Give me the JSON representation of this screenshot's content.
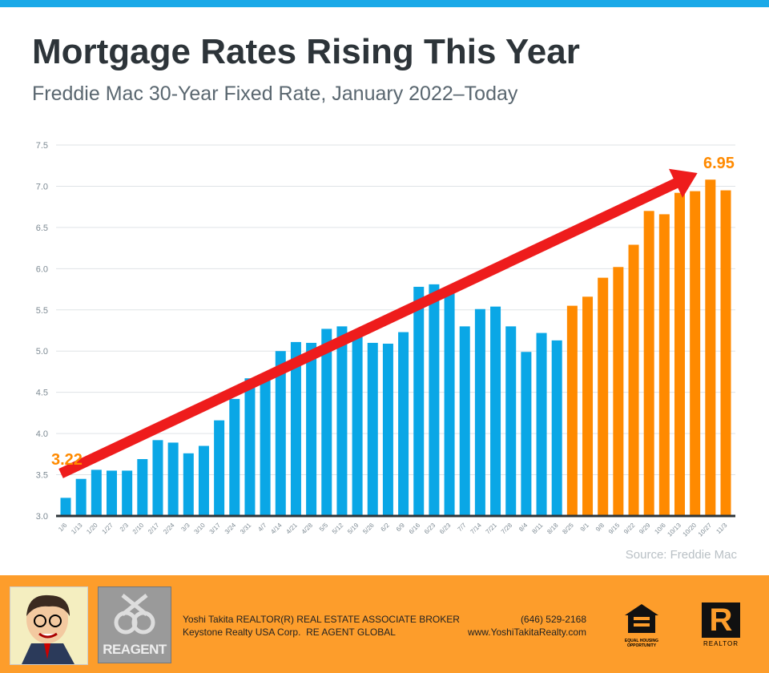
{
  "header": {
    "title": "Mortgage Rates Rising This Year",
    "subtitle": "Freddie Mac 30-Year Fixed Rate, January 2022–Today"
  },
  "chart_data": {
    "type": "bar",
    "title": "Mortgage Rates Rising This Year",
    "subtitle": "Freddie Mac 30-Year Fixed Rate, January 2022–Today",
    "xlabel": "",
    "ylabel": "",
    "ylim": [
      3.0,
      7.5
    ],
    "yticks": [
      "3.0",
      "3.5",
      "4.0",
      "4.5",
      "5.0",
      "5.5",
      "6.0",
      "6.5",
      "7.0",
      "7.5"
    ],
    "grid": true,
    "categories": [
      "1/6",
      "1/13",
      "1/20",
      "1/27",
      "2/3",
      "2/10",
      "2/17",
      "2/24",
      "3/3",
      "3/10",
      "3/17",
      "3/24",
      "3/31",
      "4/7",
      "4/14",
      "4/21",
      "4/28",
      "5/5",
      "5/12",
      "5/19",
      "5/26",
      "6/2",
      "6/9",
      "6/16",
      "6/23",
      "6/23",
      "7/7",
      "7/14",
      "7/21",
      "7/28",
      "8/4",
      "8/11",
      "8/18",
      "8/25",
      "9/1",
      "9/8",
      "9/15",
      "9/22",
      "9/29",
      "10/6",
      "10/13",
      "10/20",
      "10/27",
      "11/3"
    ],
    "values": [
      3.22,
      3.45,
      3.56,
      3.55,
      3.55,
      3.69,
      3.92,
      3.89,
      3.76,
      3.85,
      4.16,
      4.42,
      4.67,
      4.72,
      5.0,
      5.11,
      5.1,
      5.27,
      5.3,
      5.25,
      5.1,
      5.09,
      5.23,
      5.78,
      5.81,
      5.7,
      5.3,
      5.51,
      5.54,
      5.3,
      4.99,
      5.22,
      5.13,
      5.55,
      5.66,
      5.89,
      6.02,
      6.29,
      6.7,
      6.66,
      6.92,
      6.94,
      7.08,
      6.95
    ],
    "highlight_from_index": 33,
    "colors": {
      "base": "#0aa7e6",
      "highlight": "#ff8a00",
      "trend_arrow": "#ee1c1c",
      "axis": "#2d3439",
      "annotation": "#ff8a00"
    },
    "annotations": [
      {
        "text": "3.22",
        "at": "1/6"
      },
      {
        "text": "6.95",
        "at": "11/3"
      }
    ],
    "trend": "rising arrow from first to last week"
  },
  "source": "Source: Freddie Mac",
  "footer": {
    "line1": "Yoshi Takita REALTOR(R) REAL ESTATE ASSOCIATE BROKER",
    "line2": "Keystone Realty USA Corp.  RE AGENT GLOBAL",
    "phone": "(646) 529-2168",
    "website": "www.YoshiTakitaRealty.com",
    "reagent_logo": "REAGENT",
    "eho_label": "EQUAL HOUSING OPPORTUNITY",
    "realtor_label": "REALTOR",
    "realtor_mark": "R"
  }
}
